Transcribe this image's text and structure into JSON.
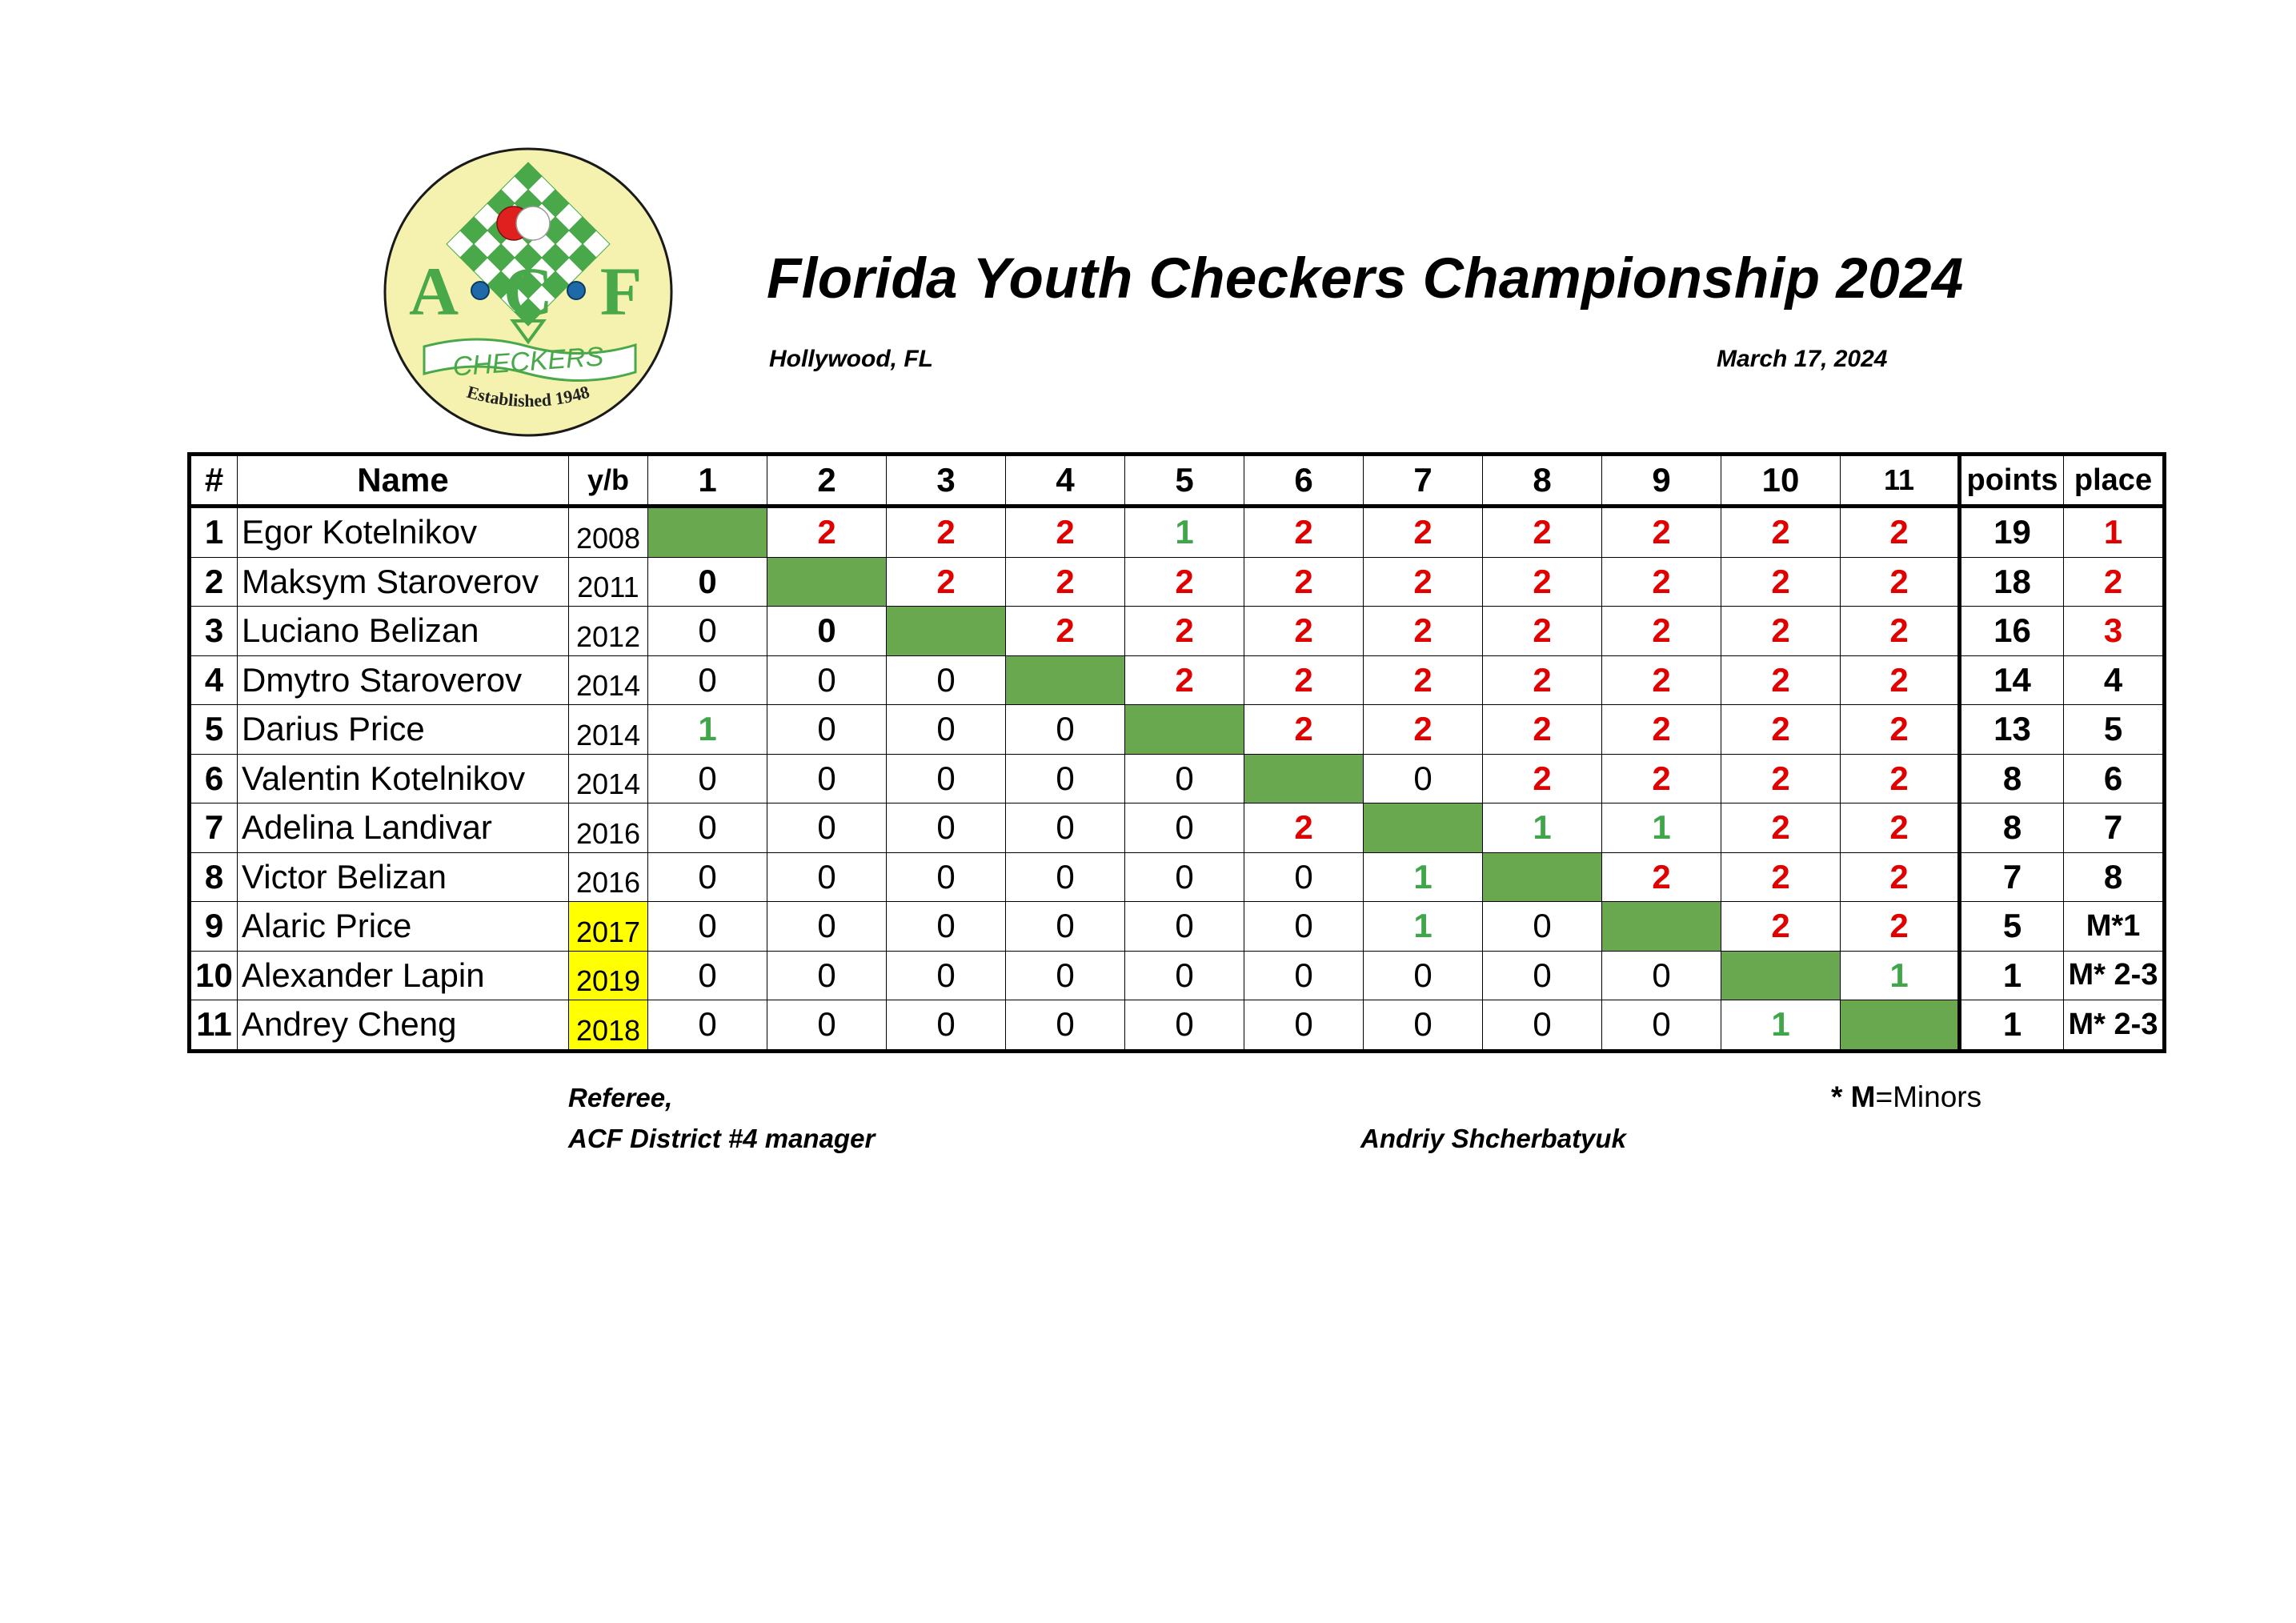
{
  "logo": {
    "letters": [
      "A",
      "C",
      "F"
    ],
    "banner": "CHECKERS",
    "established": "Established 1948",
    "colors": {
      "background": "#f5f2b0",
      "green": "#49a84a",
      "red": "#e0201f"
    }
  },
  "header": {
    "title": "Florida Youth Checkers Championship 2024",
    "location": "Hollywood, FL",
    "date": "March 17, 2024"
  },
  "table": {
    "columns": {
      "num": "#",
      "name": "Name",
      "yb": "y/b",
      "points": "points",
      "place": "place"
    },
    "round_labels": [
      "1",
      "2",
      "3",
      "4",
      "5",
      "6",
      "7",
      "8",
      "9",
      "10",
      "11"
    ],
    "colors": {
      "win": "#e00000",
      "draw": "#3fa64a",
      "self_cell": "#6aa84f",
      "minor_highlight": "#ffff00"
    },
    "rows": [
      {
        "num": "1",
        "name": "Egor Kotelnikov",
        "yb": "2008",
        "minor": false,
        "scores": [
          "",
          "2",
          "2",
          "2",
          "1",
          "2",
          "2",
          "2",
          "2",
          "2",
          "2"
        ],
        "points": "19",
        "place": "1"
      },
      {
        "num": "2",
        "name": "Maksym Staroverov",
        "yb": "2011",
        "minor": false,
        "scores": [
          "0",
          "",
          "2",
          "2",
          "2",
          "2",
          "2",
          "2",
          "2",
          "2",
          "2"
        ],
        "points": "18",
        "place": "2"
      },
      {
        "num": "3",
        "name": "Luciano Belizan",
        "yb": "2012",
        "minor": false,
        "scores": [
          "0",
          "0",
          "",
          "2",
          "2",
          "2",
          "2",
          "2",
          "2",
          "2",
          "2"
        ],
        "points": "16",
        "place": "3"
      },
      {
        "num": "4",
        "name": "Dmytro Staroverov",
        "yb": "2014",
        "minor": false,
        "scores": [
          "0",
          "0",
          "0",
          "",
          "2",
          "2",
          "2",
          "2",
          "2",
          "2",
          "2"
        ],
        "points": "14",
        "place": "4"
      },
      {
        "num": "5",
        "name": "Darius Price",
        "yb": "2014",
        "minor": false,
        "scores": [
          "1",
          "0",
          "0",
          "0",
          "",
          "2",
          "2",
          "2",
          "2",
          "2",
          "2"
        ],
        "points": "13",
        "place": "5"
      },
      {
        "num": "6",
        "name": "Valentin Kotelnikov",
        "yb": "2014",
        "minor": false,
        "scores": [
          "0",
          "0",
          "0",
          "0",
          "0",
          "",
          "0",
          "2",
          "2",
          "2",
          "2"
        ],
        "points": "8",
        "place": "6"
      },
      {
        "num": "7",
        "name": "Adelina Landivar",
        "yb": "2016",
        "minor": false,
        "scores": [
          "0",
          "0",
          "0",
          "0",
          "0",
          "2",
          "",
          "1",
          "1",
          "2",
          "2"
        ],
        "points": "8",
        "place": "7"
      },
      {
        "num": "8",
        "name": "Victor Belizan",
        "yb": "2016",
        "minor": false,
        "scores": [
          "0",
          "0",
          "0",
          "0",
          "0",
          "0",
          "1",
          "",
          "2",
          "2",
          "2"
        ],
        "points": "7",
        "place": "8"
      },
      {
        "num": "9",
        "name": "Alaric Price",
        "yb": "2017",
        "minor": true,
        "scores": [
          "0",
          "0",
          "0",
          "0",
          "0",
          "0",
          "1",
          "0",
          "",
          "2",
          "2"
        ],
        "points": "5",
        "place": "M*1"
      },
      {
        "num": "10",
        "name": "Alexander Lapin",
        "yb": "2019",
        "minor": true,
        "scores": [
          "0",
          "0",
          "0",
          "0",
          "0",
          "0",
          "0",
          "0",
          "0",
          "",
          "1"
        ],
        "points": "1",
        "place": "M* 2-3"
      },
      {
        "num": "11",
        "name": "Andrey Cheng",
        "yb": "2018",
        "minor": true,
        "scores": [
          "0",
          "0",
          "0",
          "0",
          "0",
          "0",
          "0",
          "0",
          "0",
          "1",
          ""
        ],
        "points": "1",
        "place": "M* 2-3"
      }
    ]
  },
  "footer": {
    "referee": "Referee,",
    "role": "ACF District #4 manager",
    "signer": "Andriy Shcherbatyuk",
    "note_star": "* M",
    "note_rest": "=Minors"
  }
}
